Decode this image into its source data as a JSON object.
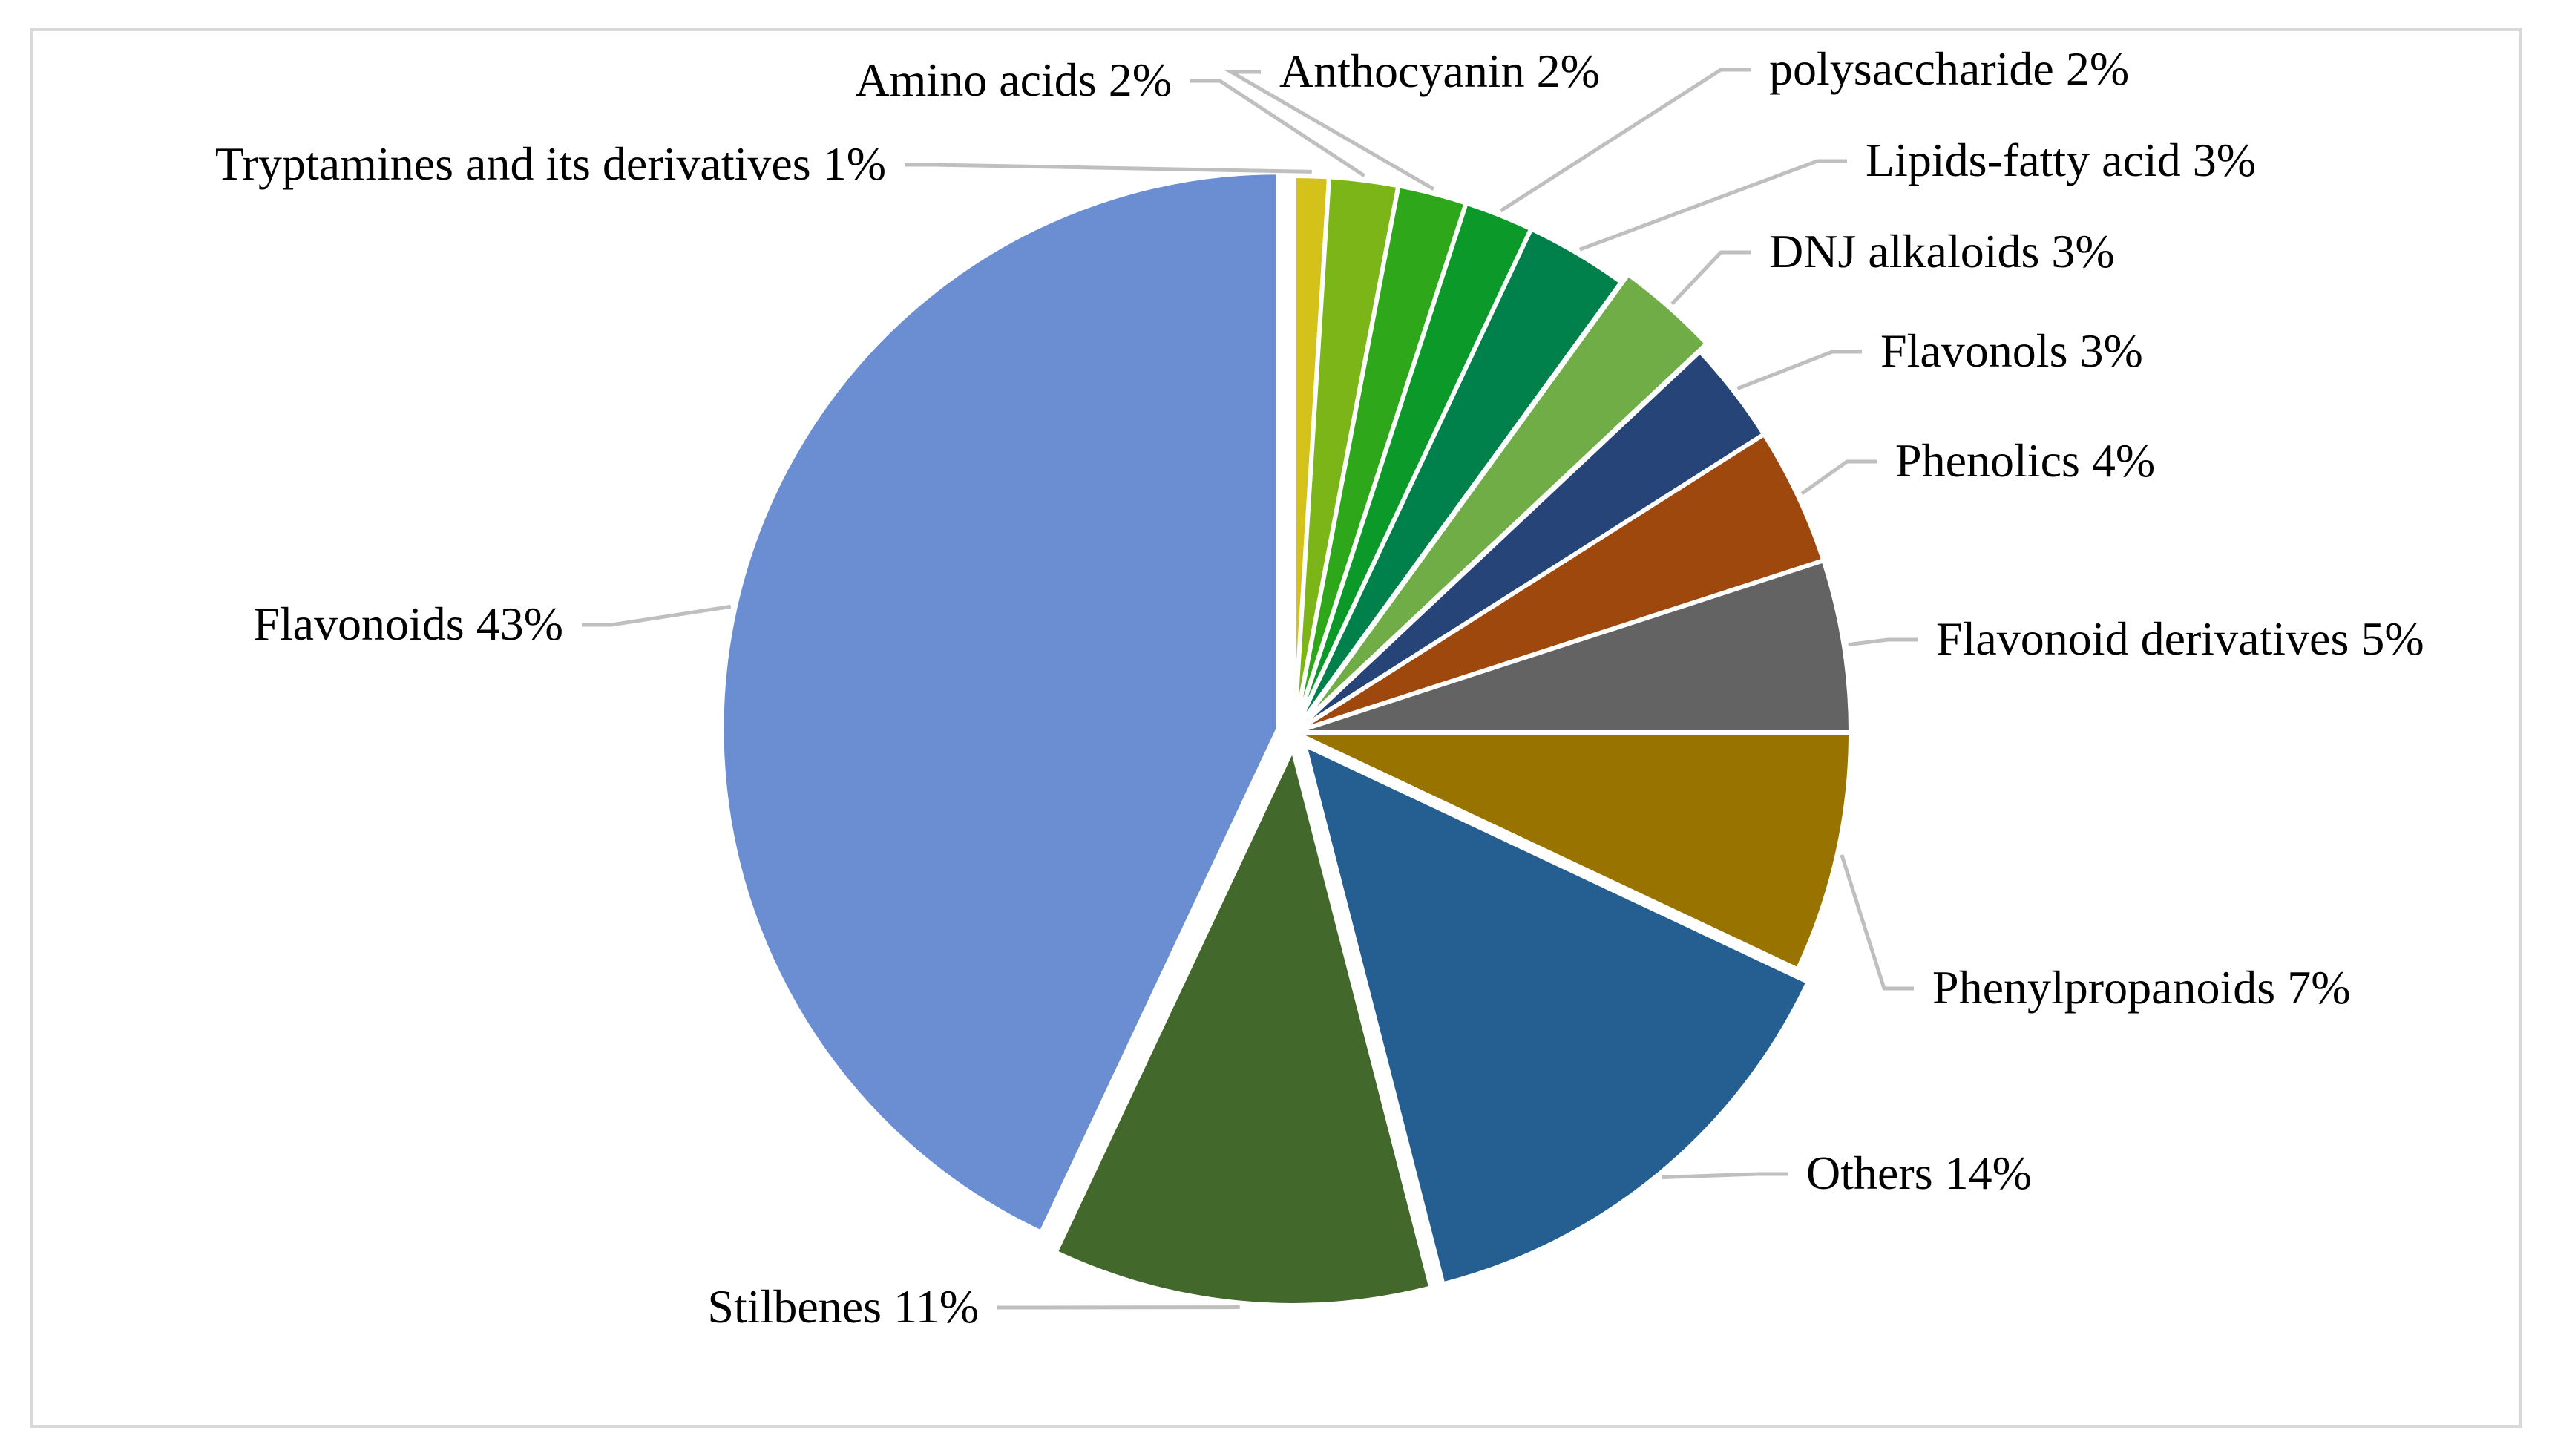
{
  "chart_data": {
    "type": "pie",
    "title": "",
    "slices": [
      {
        "label": "Tryptamines and its derivatives",
        "value": 1,
        "text": "Tryptamines and its derivatives 1%",
        "color": "#d4c21a"
      },
      {
        "label": "Amino acids",
        "value": 2,
        "text": "Amino acids 2%",
        "color": "#7cb518"
      },
      {
        "label": "Anthocyanin",
        "value": 2,
        "text": "Anthocyanin 2%",
        "color": "#2ea81a"
      },
      {
        "label": "polysaccharide",
        "value": 2,
        "text": "polysaccharide 2%",
        "color": "#0b9a2a"
      },
      {
        "label": "Lipids-fatty acid",
        "value": 3,
        "text": "Lipids-fatty acid 3%",
        "color": "#00804a"
      },
      {
        "label": "DNJ alkaloids",
        "value": 3,
        "text": "DNJ alkaloids 3%",
        "color": "#70ad47"
      },
      {
        "label": "Flavonols",
        "value": 3,
        "text": "Flavonols 3%",
        "color": "#264478"
      },
      {
        "label": "Phenolics",
        "value": 4,
        "text": "Phenolics 4%",
        "color": "#9e480e"
      },
      {
        "label": "Flavonoid derivatives",
        "value": 5,
        "text": "Flavonoid derivatives 5%",
        "color": "#636363"
      },
      {
        "label": "Phenylpropanoids",
        "value": 7,
        "text": "Phenylpropanoids 7%",
        "color": "#997300"
      },
      {
        "label": "Others",
        "value": 14,
        "text": "Others 14%",
        "color": "#255e91"
      },
      {
        "label": "Stilbenes",
        "value": 11,
        "text": "Stilbenes 11%",
        "color": "#43682b"
      },
      {
        "label": "Flavonoids",
        "value": 43,
        "text": "Flavonoids 43%",
        "color": "#6b8ed2"
      }
    ],
    "legend": "none",
    "data_labels": "outside with leader lines"
  }
}
